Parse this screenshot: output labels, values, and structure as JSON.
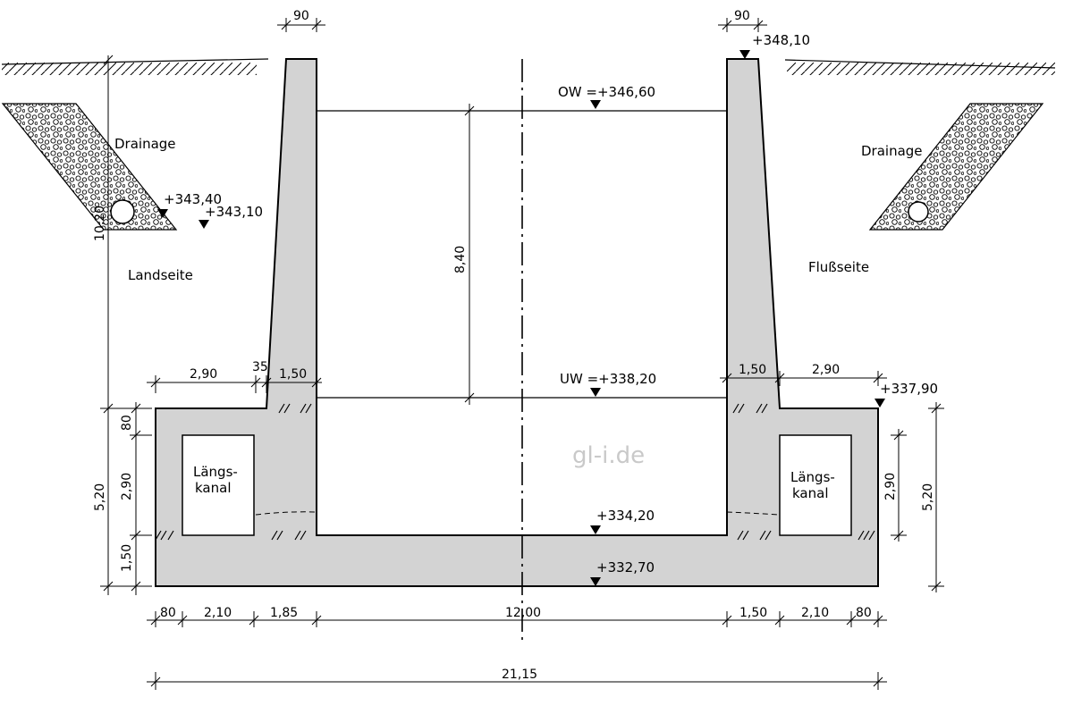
{
  "labels": {
    "drainage_left": "Drainage",
    "drainage_right": "Drainage",
    "landside": "Landseite",
    "riverside": "Flußseite",
    "channel_left_1": "Längs-",
    "channel_left_2": "kanal",
    "channel_right_1": "Längs-",
    "channel_right_2": "kanal",
    "watermark": "gl-i.de"
  },
  "levels": {
    "ow": "OW =+346,60",
    "uw": "UW =+338,20",
    "top_right_wall": "+348,10",
    "drain_left_1": "+343,40",
    "drain_left_2": "+343,10",
    "right_ground": "+337,90",
    "floor": "+334,20",
    "base": "+332,70"
  },
  "dimensions": {
    "wall_top_left": "90",
    "wall_top_right": "90",
    "height_total_left": "10,20",
    "lift_height": "8,40",
    "left_ext": "2,90",
    "left_step": "35",
    "left_wall_base": "1,50",
    "right_wall_base": "1,50",
    "right_ext": "2,90",
    "left_80": "80",
    "left_290": "2,90",
    "left_520": "5,20",
    "left_150": "1,50",
    "right_290": "2,90",
    "right_520": "5,20",
    "bottom_80_left": "80",
    "bottom_210_left": "2,10",
    "bottom_185": "1,85",
    "bottom_1200": "12,00",
    "bottom_150_right": "1,50",
    "bottom_210_right": "2,10",
    "bottom_80_right": "80",
    "total_width": "21,15"
  }
}
